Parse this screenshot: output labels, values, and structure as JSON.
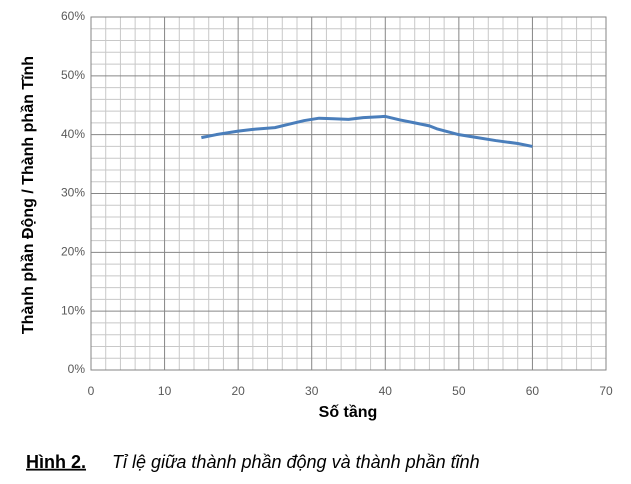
{
  "chart_data": {
    "type": "line",
    "x_label": "Số tầng",
    "y_label": "Thành phần Động / Thành phần Tĩnh",
    "caption_label": "Hình 2.",
    "caption_text": "Tỉ lệ giữa thành phần động và thành phần tĩnh",
    "x": [
      15,
      17,
      20,
      22,
      25,
      27,
      29,
      31,
      33,
      35,
      37,
      40,
      42,
      44,
      46,
      47,
      50,
      52,
      55,
      58,
      60
    ],
    "series": [
      {
        "color": "#4a7ebb",
        "values": [
          39.5,
          40,
          40.6,
          40.9,
          41.2,
          41.8,
          42.4,
          42.8,
          42.7,
          42.6,
          42.9,
          43.1,
          42.5,
          42,
          41.5,
          41,
          40,
          39.6,
          39,
          38.5,
          38
        ]
      }
    ],
    "xlim": [
      0,
      70
    ],
    "xticks": [
      0,
      10,
      20,
      30,
      40,
      50,
      60,
      70
    ],
    "ylim": [
      0,
      60
    ],
    "yticks": [
      {
        "value": 0,
        "label": "0%"
      },
      {
        "value": 10,
        "label": "10%"
      },
      {
        "value": 20,
        "label": "20%"
      },
      {
        "value": 30,
        "label": "30%"
      },
      {
        "value": 40,
        "label": "40%"
      },
      {
        "value": 50,
        "label": "50%"
      },
      {
        "value": 60,
        "label": "60%"
      }
    ],
    "grid": true
  }
}
